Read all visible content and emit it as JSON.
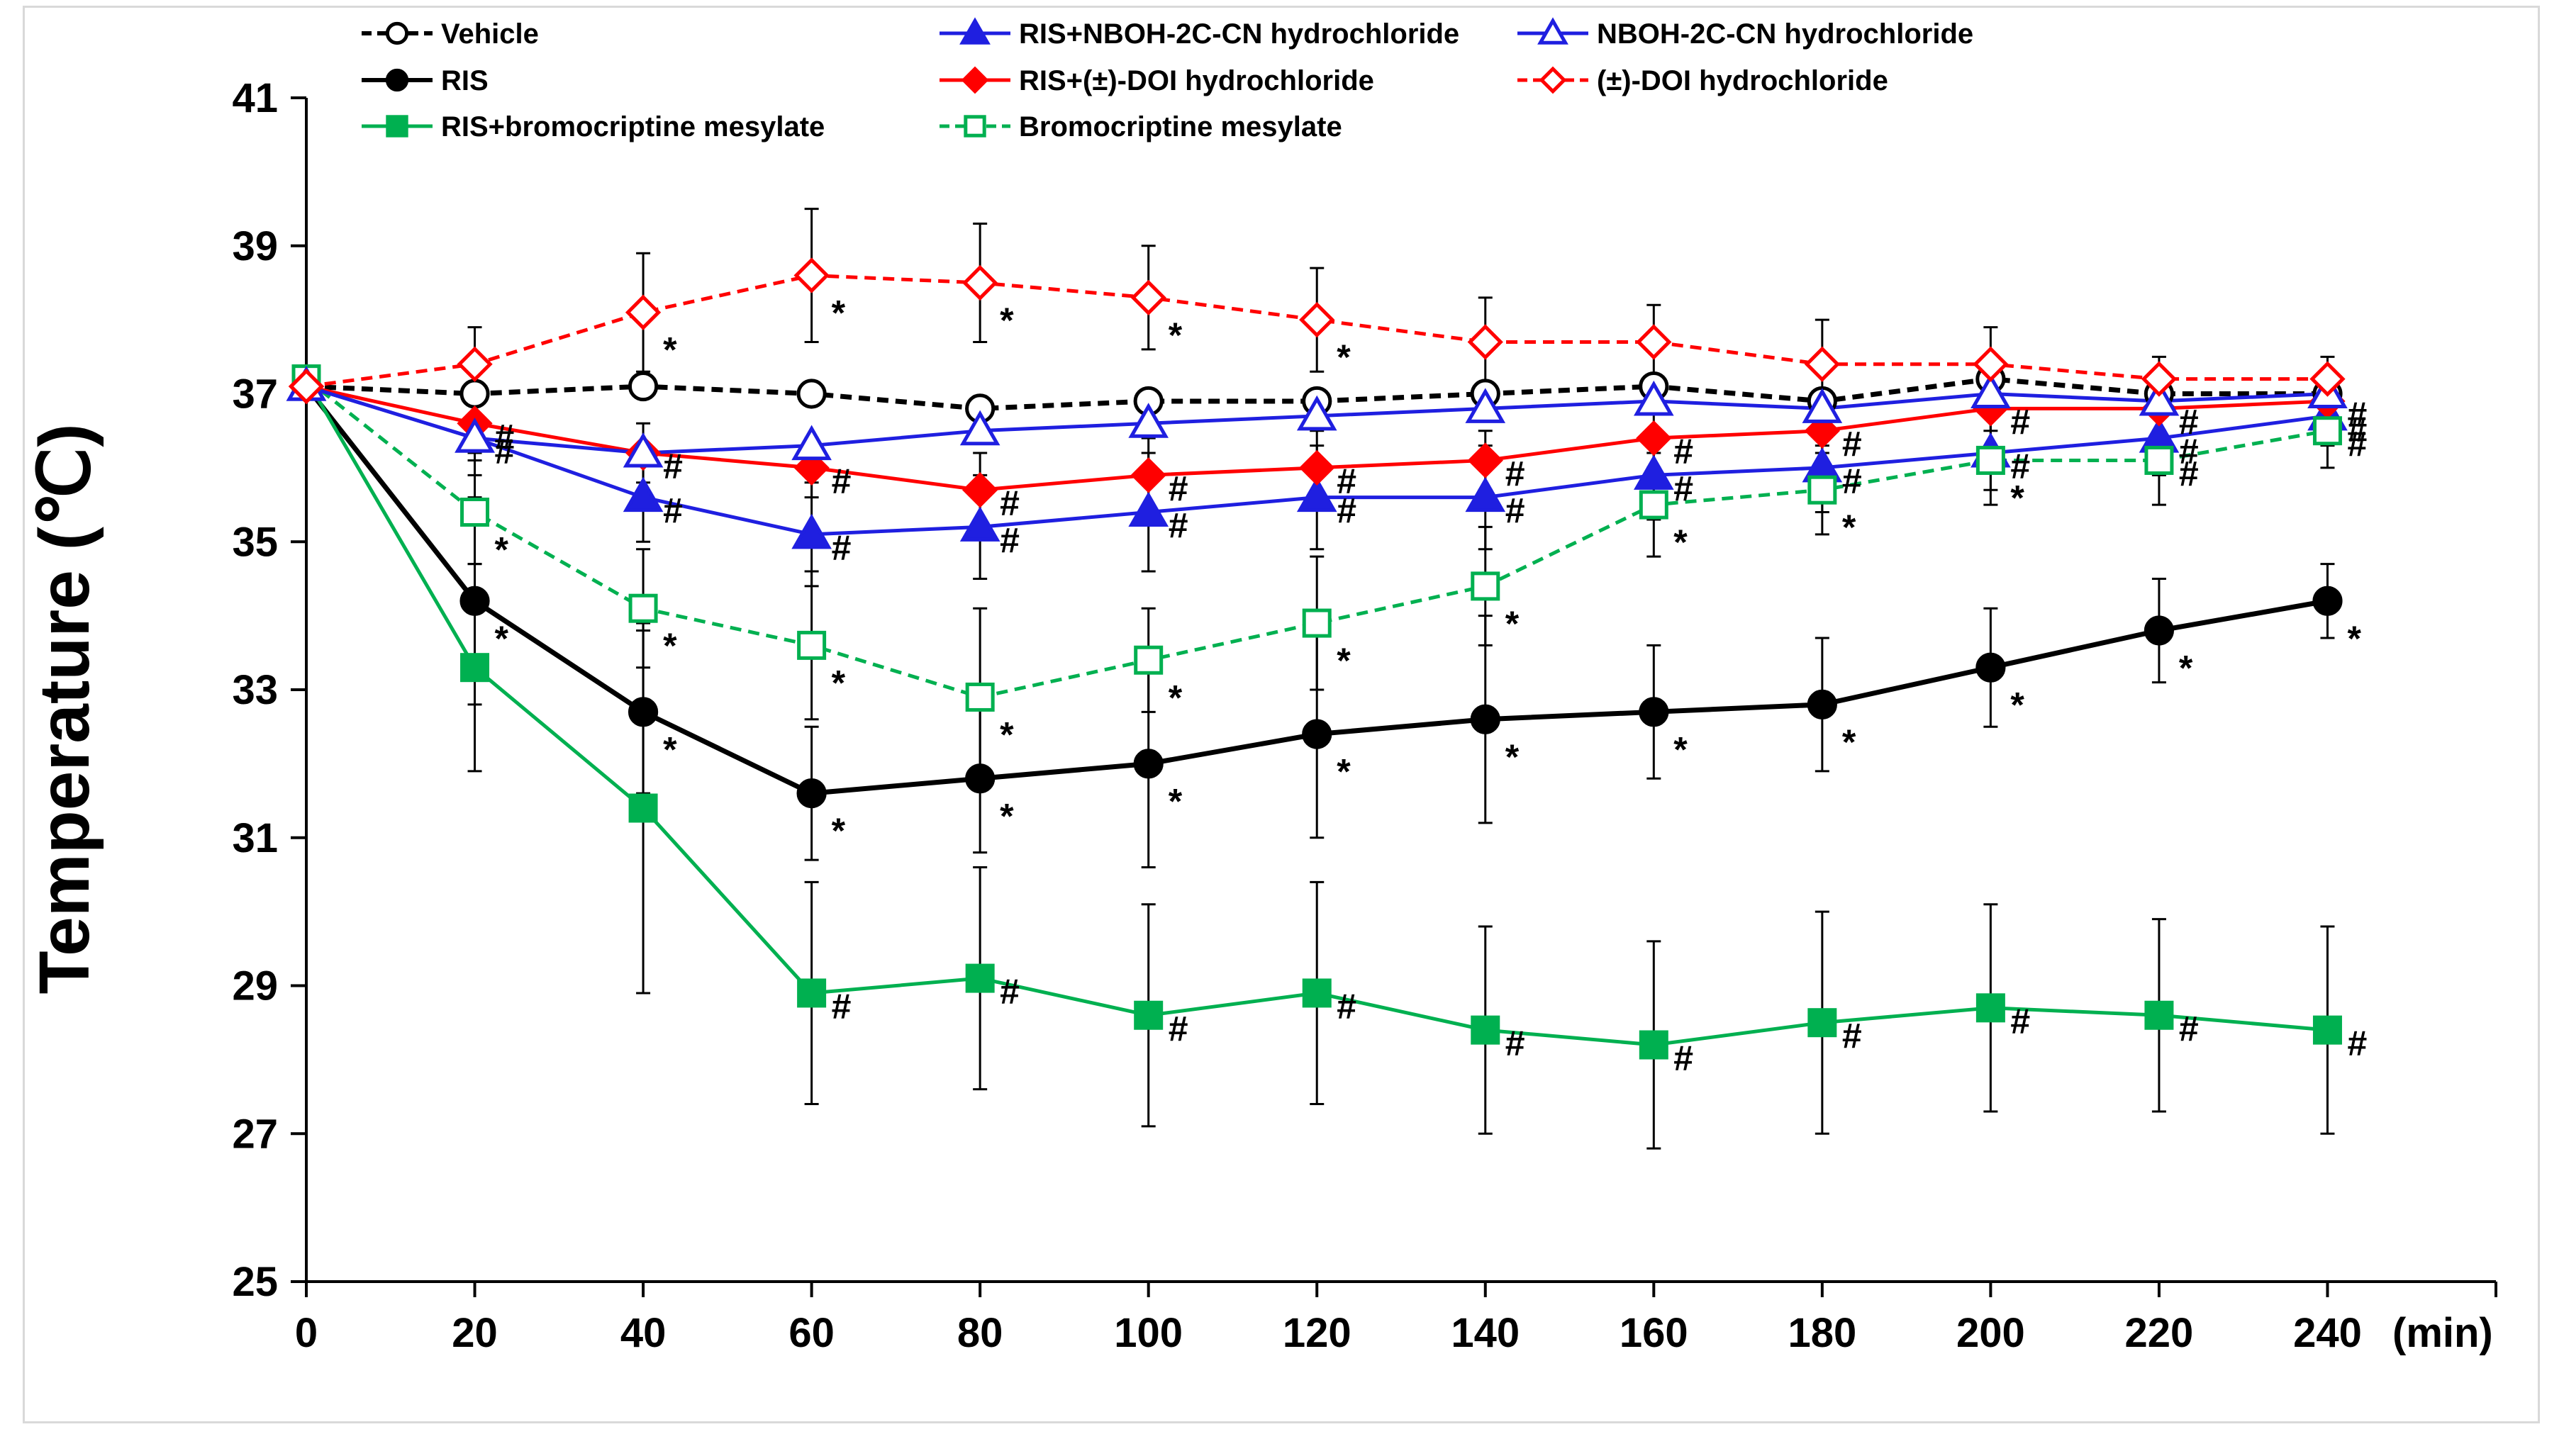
{
  "chart_data": {
    "type": "line",
    "title": "",
    "ylabel": "Temperature (℃)",
    "xlabel": "",
    "x_unit_label": "(min)",
    "x": [
      0,
      20,
      40,
      60,
      80,
      100,
      120,
      140,
      160,
      180,
      200,
      220,
      240
    ],
    "x_ticks": [
      "0",
      "20",
      "40",
      "60",
      "80",
      "100",
      "120",
      "140",
      "160",
      "180",
      "200",
      "220",
      "240"
    ],
    "ylim": [
      25,
      41
    ],
    "y_ticks": [
      "25",
      "27",
      "29",
      "31",
      "33",
      "35",
      "37",
      "39",
      "41"
    ],
    "grid": false,
    "legend_position": "top",
    "series": [
      {
        "name": "Vehicle",
        "color": "#000000",
        "dashed": true,
        "marker": "circle",
        "filled": false,
        "values": [
          37.1,
          37.0,
          37.1,
          37.0,
          36.8,
          36.9,
          36.9,
          37.0,
          37.1,
          36.9,
          37.2,
          37.0,
          37.0
        ],
        "errors": [],
        "annotations": []
      },
      {
        "name": "RIS",
        "color": "#000000",
        "dashed": false,
        "marker": "circle",
        "filled": true,
        "values": [
          37.1,
          34.2,
          32.7,
          31.6,
          31.8,
          32.0,
          32.4,
          32.6,
          32.7,
          32.8,
          33.3,
          33.8,
          34.2
        ],
        "errors": [
          0,
          1.4,
          1.1,
          0.9,
          1.0,
          1.4,
          1.4,
          1.4,
          0.9,
          0.9,
          0.8,
          0.7,
          0.5
        ],
        "annotations": [
          "",
          "*",
          "*",
          "*",
          "*",
          "*",
          "*",
          "*",
          "*",
          "*",
          "*",
          "*",
          "*"
        ]
      },
      {
        "name": "RIS+bromocriptine mesylate",
        "color": "#00b050",
        "dashed": false,
        "marker": "square",
        "filled": true,
        "values": [
          37.2,
          33.3,
          31.4,
          28.9,
          29.1,
          28.6,
          28.9,
          28.4,
          28.2,
          28.5,
          28.7,
          28.6,
          28.4
        ],
        "errors": [
          0,
          1.4,
          2.5,
          1.5,
          1.5,
          1.5,
          1.5,
          1.4,
          1.4,
          1.5,
          1.4,
          1.3,
          1.4
        ],
        "annotations": [
          "",
          "",
          "",
          "#",
          "#",
          "#",
          "#",
          "#",
          "#",
          "#",
          "#",
          "#",
          "#"
        ]
      },
      {
        "name": "RIS+NBOH-2C-CN hydrochloride",
        "color": "#1f1fe0",
        "dashed": false,
        "marker": "triangle",
        "filled": true,
        "values": [
          37.1,
          36.4,
          35.6,
          35.1,
          35.2,
          35.4,
          35.6,
          35.6,
          35.9,
          36.0,
          36.2,
          36.4,
          36.7
        ],
        "errors": [
          0,
          0.5,
          0.6,
          0.7,
          0.7,
          0.8,
          0.7,
          0.7,
          0.6,
          0.6,
          0.5,
          0.5,
          0.4
        ],
        "annotations": [
          "",
          "#",
          "#",
          "#",
          "#",
          "#",
          "#",
          "#",
          "#",
          "#",
          "#",
          "#",
          "#"
        ]
      },
      {
        "name": "RIS+(±)-DOI hydrochloride",
        "color": "#ff0000",
        "dashed": false,
        "marker": "diamond",
        "filled": true,
        "values": [
          37.1,
          36.6,
          36.2,
          36.0,
          35.7,
          35.9,
          36.0,
          36.1,
          36.4,
          36.5,
          36.8,
          36.8,
          36.9
        ],
        "errors": [
          0,
          0.4,
          0.4,
          0.4,
          0.5,
          0.5,
          0.5,
          0.4,
          0.4,
          0.3,
          0.3,
          0.3,
          0.3
        ],
        "annotations": [
          "",
          "#",
          "#",
          "#",
          "#",
          "#",
          "#",
          "#",
          "#",
          "#",
          "#",
          "#",
          "#"
        ]
      },
      {
        "name": "Bromocriptine mesylate",
        "color": "#00b050",
        "dashed": true,
        "marker": "square",
        "filled": false,
        "values": [
          37.2,
          35.4,
          34.1,
          33.6,
          32.9,
          33.4,
          33.9,
          34.4,
          35.5,
          35.7,
          36.1,
          36.1,
          36.5
        ],
        "errors": [
          0,
          0.7,
          0.8,
          1.0,
          1.2,
          0.7,
          0.9,
          0.8,
          0.7,
          0.6,
          0.6,
          0.6,
          0.5
        ],
        "annotations": [
          "",
          "*",
          "*",
          "*",
          "*",
          "*",
          "*",
          "*",
          "*",
          "*",
          "*",
          "#",
          "#"
        ]
      },
      {
        "name": "NBOH-2C-CN hydrochloride",
        "color": "#1f1fe0",
        "dashed": false,
        "marker": "triangle",
        "filled": false,
        "values": [
          37.1,
          36.4,
          36.2,
          36.3,
          36.5,
          36.6,
          36.7,
          36.8,
          36.9,
          36.8,
          37.0,
          36.9,
          37.0
        ],
        "errors": [],
        "annotations": []
      },
      {
        "name": "(±)-DOI hydrochloride",
        "color": "#ff0000",
        "dashed": true,
        "marker": "diamond",
        "filled": false,
        "values": [
          37.1,
          37.4,
          38.1,
          38.6,
          38.5,
          38.3,
          38.0,
          37.7,
          37.7,
          37.4,
          37.4,
          37.2,
          37.2
        ],
        "errors": [
          0,
          0.5,
          0.8,
          0.9,
          0.8,
          0.7,
          0.7,
          0.6,
          0.5,
          0.6,
          0.5,
          0.3,
          0.3
        ],
        "annotations": [
          "",
          "",
          "*",
          "*",
          "*",
          "*",
          "*",
          "",
          "",
          "",
          "",
          "",
          ""
        ]
      }
    ]
  }
}
